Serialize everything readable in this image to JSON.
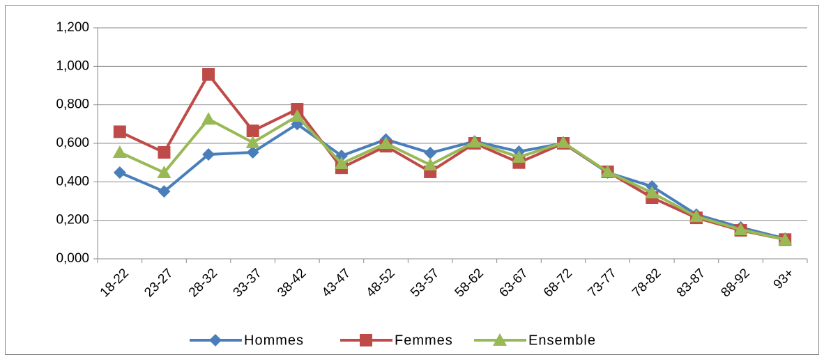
{
  "chart_data": {
    "type": "line",
    "categories": [
      "18-22",
      "23-27",
      "28-32",
      "33-37",
      "38-42",
      "43-47",
      "48-52",
      "53-57",
      "58-62",
      "63-67",
      "68-72",
      "73-77",
      "78-82",
      "83-87",
      "88-92",
      "93+"
    ],
    "series": [
      {
        "name": "Hommes",
        "color": "#4a7ebb",
        "marker": "diamond",
        "values": [
          0.448,
          0.35,
          0.542,
          0.553,
          0.7,
          0.535,
          0.62,
          0.55,
          0.61,
          0.557,
          0.6,
          0.448,
          0.376,
          0.23,
          0.163,
          0.105
        ]
      },
      {
        "name": "Femmes",
        "color": "#be4b48",
        "marker": "square",
        "values": [
          0.66,
          0.553,
          0.958,
          0.665,
          0.777,
          0.473,
          0.585,
          0.452,
          0.6,
          0.5,
          0.6,
          0.452,
          0.318,
          0.213,
          0.148,
          0.1
        ]
      },
      {
        "name": "Ensemble",
        "color": "#98b954",
        "marker": "triangle",
        "values": [
          0.553,
          0.448,
          0.726,
          0.604,
          0.741,
          0.495,
          0.6,
          0.488,
          0.607,
          0.528,
          0.604,
          0.452,
          0.343,
          0.22,
          0.152,
          0.1
        ]
      }
    ],
    "ylim": [
      0,
      1.2
    ],
    "yticks": [
      {
        "value": 0,
        "label": "0,000"
      },
      {
        "value": 0.2,
        "label": "0,200"
      },
      {
        "value": 0.4,
        "label": "0,400"
      },
      {
        "value": 0.6,
        "label": "0,600"
      },
      {
        "value": 0.8,
        "label": "0,800"
      },
      {
        "value": 1.0,
        "label": "1,000"
      },
      {
        "value": 1.2,
        "label": "1,200"
      }
    ],
    "grid": true,
    "legend": "bottom"
  }
}
